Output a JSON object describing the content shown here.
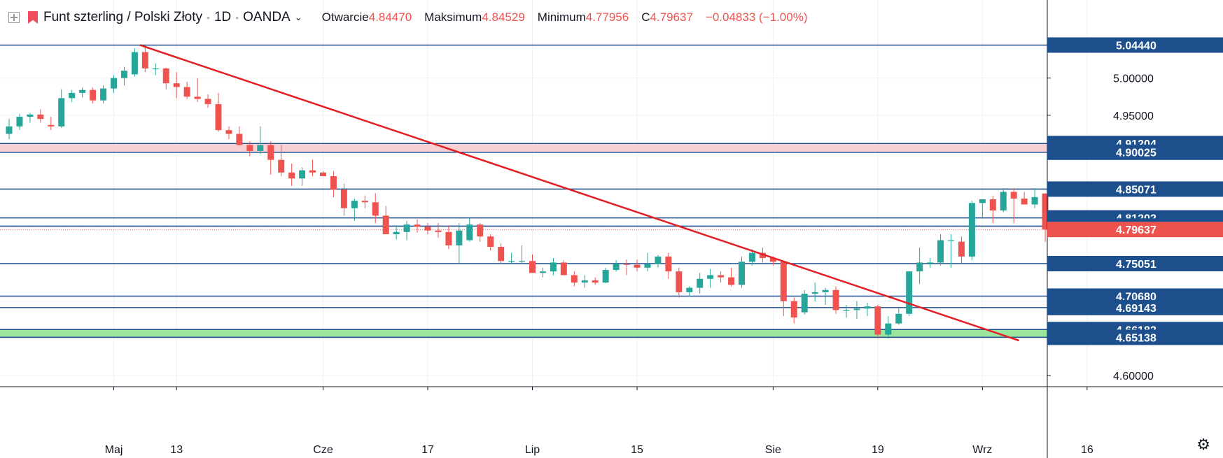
{
  "header": {
    "symbol_title": "Funt szterling / Polski Złoty",
    "interval": "1D",
    "exchange": "OANDA",
    "open_label": "Otwarcie",
    "open_value": "4.84470",
    "high_label": "Maksimum",
    "high_value": "4.84529",
    "low_label": "Minimum",
    "low_value": "4.77956",
    "close_label": "C",
    "close_value": "4.79637",
    "change_value": "−0.04833 (−1.00%)"
  },
  "colors": {
    "up": "#26a69a",
    "down": "#ef5350",
    "level_line": "#1c4f8c",
    "trendline": "#e31e24",
    "zone_pink": "#f8d0d3",
    "zone_green": "#9ce59f",
    "price_tag": "#ef5350",
    "axis_text": "#131722",
    "grid": "#eef0f3"
  },
  "icons": {
    "layout": "plus-square-icon",
    "flag": "flag-icon",
    "dropdown": "chevron-down-icon",
    "settings": "gear-icon"
  },
  "chart_data": {
    "type": "candlestick",
    "y_range": [
      4.585,
      5.105
    ],
    "y_tick_labels": [
      "5.00000",
      "4.95000",
      "4.60000"
    ],
    "x_tick_labels": [
      {
        "label": "Maj",
        "index": 10
      },
      {
        "label": "13",
        "index": 16
      },
      {
        "label": "Cze",
        "index": 30
      },
      {
        "label": "17",
        "index": 40
      },
      {
        "label": "Lip",
        "index": 50
      },
      {
        "label": "15",
        "index": 60
      },
      {
        "label": "Sie",
        "index": 73
      },
      {
        "label": "19",
        "index": 83
      },
      {
        "label": "Wrz",
        "index": 93
      },
      {
        "label": "16",
        "index": 103
      }
    ],
    "horizontal_levels": [
      {
        "label": "5.04440",
        "value": 5.0444
      },
      {
        "label": "4.91204",
        "value": 4.91204
      },
      {
        "label": "4.90025",
        "value": 4.90025
      },
      {
        "label": "4.85071",
        "value": 4.85071
      },
      {
        "label": "4.81202",
        "value": 4.81202
      },
      {
        "label": "4.80098",
        "value": 4.80098
      },
      {
        "label": "4.75051",
        "value": 4.75051
      },
      {
        "label": "4.70680",
        "value": 4.7068
      },
      {
        "label": "4.69143",
        "value": 4.69143
      },
      {
        "label": "4.66182",
        "value": 4.66182
      },
      {
        "label": "4.65138",
        "value": 4.65138
      }
    ],
    "zones": [
      {
        "from": 4.90025,
        "to": 4.91204,
        "color": "pink"
      },
      {
        "from": 4.65138,
        "to": 4.66182,
        "color": "green"
      }
    ],
    "last_price": {
      "label": "4.79637",
      "value": 4.79637
    },
    "trendline": {
      "start": {
        "index": 12.5,
        "value": 5.0444
      },
      "end": {
        "index": 96.5,
        "value": 4.647
      }
    },
    "candles": [
      [
        4.925,
        4.945,
        4.918,
        4.935
      ],
      [
        4.935,
        4.952,
        4.93,
        4.948
      ],
      [
        4.948,
        4.953,
        4.94,
        4.951
      ],
      [
        4.951,
        4.958,
        4.94,
        4.945
      ],
      [
        4.937,
        4.948,
        4.93,
        4.935
      ],
      [
        4.935,
        4.985,
        4.933,
        4.973
      ],
      [
        4.973,
        4.984,
        4.968,
        4.98
      ],
      [
        4.98,
        4.987,
        4.974,
        4.984
      ],
      [
        4.984,
        4.987,
        4.966,
        4.97
      ],
      [
        4.97,
        4.99,
        4.966,
        4.986
      ],
      [
        4.986,
        5.004,
        4.98,
        5.0
      ],
      [
        5.0,
        5.015,
        4.99,
        5.01
      ],
      [
        5.005,
        5.04,
        5.002,
        5.035
      ],
      [
        5.035,
        5.044,
        5.008,
        5.013
      ],
      [
        5.013,
        5.02,
        5.004,
        5.013
      ],
      [
        5.013,
        5.014,
        4.985,
        4.993
      ],
      [
        4.993,
        5.008,
        4.973,
        4.988
      ],
      [
        4.988,
        4.995,
        4.972,
        4.975
      ],
      [
        4.975,
        5.0,
        4.968,
        4.972
      ],
      [
        4.972,
        4.978,
        4.96,
        4.965
      ],
      [
        4.965,
        4.98,
        4.928,
        4.93
      ],
      [
        4.93,
        4.935,
        4.918,
        4.925
      ],
      [
        4.925,
        4.935,
        4.909,
        4.91
      ],
      [
        4.91,
        4.915,
        4.895,
        4.902
      ],
      [
        4.902,
        4.935,
        4.898,
        4.91
      ],
      [
        4.91,
        4.915,
        4.87,
        4.89
      ],
      [
        4.89,
        4.91,
        4.868,
        4.873
      ],
      [
        4.873,
        4.885,
        4.855,
        4.865
      ],
      [
        4.865,
        4.88,
        4.855,
        4.876
      ],
      [
        4.876,
        4.89,
        4.868,
        4.873
      ],
      [
        4.873,
        4.875,
        4.868,
        4.868
      ],
      [
        4.868,
        4.875,
        4.84,
        4.85
      ],
      [
        4.85,
        4.858,
        4.815,
        4.825
      ],
      [
        4.825,
        4.838,
        4.808,
        4.835
      ],
      [
        4.835,
        4.842,
        4.825,
        4.833
      ],
      [
        4.833,
        4.845,
        4.805,
        4.815
      ],
      [
        4.815,
        4.828,
        4.795,
        4.79
      ],
      [
        4.79,
        4.802,
        4.783,
        4.793
      ],
      [
        4.793,
        4.808,
        4.782,
        4.803
      ],
      [
        4.803,
        4.81,
        4.792,
        4.8
      ],
      [
        4.8,
        4.805,
        4.79,
        4.795
      ],
      [
        4.795,
        4.805,
        4.785,
        4.793
      ],
      [
        4.793,
        4.802,
        4.77,
        4.775
      ],
      [
        4.775,
        4.805,
        4.75,
        4.795
      ],
      [
        4.782,
        4.812,
        4.78,
        4.803
      ],
      [
        4.803,
        4.805,
        4.78,
        4.787
      ],
      [
        4.787,
        4.79,
        4.768,
        4.773
      ],
      [
        4.773,
        4.778,
        4.75,
        4.754
      ],
      [
        4.754,
        4.765,
        4.75,
        4.754
      ],
      [
        4.754,
        4.775,
        4.75,
        4.754
      ],
      [
        4.754,
        4.763,
        4.742,
        4.738
      ],
      [
        4.738,
        4.745,
        4.732,
        4.74
      ],
      [
        4.74,
        4.758,
        4.735,
        4.752
      ],
      [
        4.752,
        4.755,
        4.738,
        4.735
      ],
      [
        4.735,
        4.74,
        4.72,
        4.725
      ],
      [
        4.725,
        4.735,
        4.718,
        4.728
      ],
      [
        4.728,
        4.732,
        4.722,
        4.725
      ],
      [
        4.725,
        4.745,
        4.724,
        4.742
      ],
      [
        4.742,
        4.755,
        4.74,
        4.75
      ],
      [
        4.75,
        4.756,
        4.735,
        4.749
      ],
      [
        4.749,
        4.756,
        4.74,
        4.745
      ],
      [
        4.745,
        4.765,
        4.74,
        4.75
      ],
      [
        4.75,
        4.762,
        4.745,
        4.76
      ],
      [
        4.76,
        4.765,
        4.73,
        4.74
      ],
      [
        4.74,
        4.745,
        4.705,
        4.712
      ],
      [
        4.712,
        4.72,
        4.706,
        4.718
      ],
      [
        4.718,
        4.738,
        4.71,
        4.73
      ],
      [
        4.73,
        4.743,
        4.718,
        4.735
      ],
      [
        4.735,
        4.74,
        4.725,
        4.732
      ],
      [
        4.732,
        4.745,
        4.72,
        4.722
      ],
      [
        4.722,
        4.76,
        4.718,
        4.753
      ],
      [
        4.753,
        4.77,
        4.748,
        4.765
      ],
      [
        4.765,
        4.772,
        4.752,
        4.758
      ],
      [
        4.758,
        4.76,
        4.748,
        4.753
      ],
      [
        4.753,
        4.754,
        4.68,
        4.7
      ],
      [
        4.7,
        4.705,
        4.67,
        4.678
      ],
      [
        4.685,
        4.715,
        4.682,
        4.71
      ],
      [
        4.71,
        4.725,
        4.7,
        4.712
      ],
      [
        4.712,
        4.718,
        4.695,
        4.715
      ],
      [
        4.715,
        4.72,
        4.683,
        4.688
      ],
      [
        4.688,
        4.695,
        4.678,
        4.688
      ],
      [
        4.688,
        4.7,
        4.676,
        4.69
      ],
      [
        4.69,
        4.698,
        4.68,
        4.693
      ],
      [
        4.693,
        4.695,
        4.65,
        4.655
      ],
      [
        4.655,
        4.68,
        4.65,
        4.67
      ],
      [
        4.67,
        4.69,
        4.668,
        4.683
      ],
      [
        4.683,
        4.74,
        4.68,
        4.74
      ],
      [
        4.74,
        4.772,
        4.723,
        4.752
      ],
      [
        4.752,
        4.758,
        4.745,
        4.752
      ],
      [
        4.752,
        4.79,
        4.748,
        4.782
      ],
      [
        4.782,
        4.79,
        4.745,
        4.782
      ],
      [
        4.78,
        4.787,
        4.75,
        4.76
      ],
      [
        4.76,
        4.835,
        4.755,
        4.832
      ],
      [
        4.832,
        4.837,
        4.812,
        4.837
      ],
      [
        4.837,
        4.842,
        4.805,
        4.822
      ],
      [
        4.822,
        4.852,
        4.82,
        4.847
      ],
      [
        4.847,
        4.852,
        4.805,
        4.838
      ],
      [
        4.838,
        4.847,
        4.83,
        4.83
      ],
      [
        4.83,
        4.852,
        4.825,
        4.84
      ],
      [
        4.8447,
        4.84529,
        4.77956,
        4.79637
      ]
    ]
  }
}
